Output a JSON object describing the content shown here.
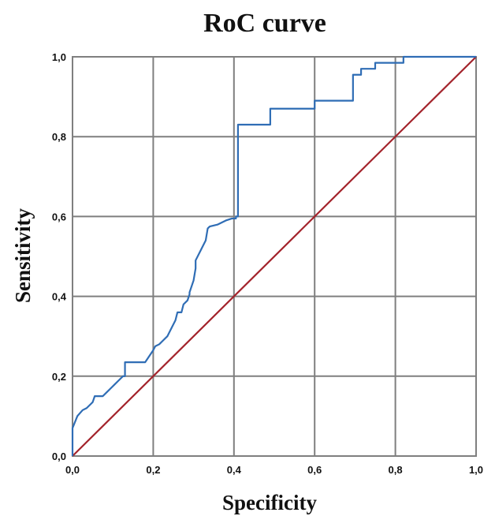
{
  "chart_data": {
    "type": "line",
    "title": "RoC curve",
    "xlabel": "Specificity",
    "ylabel": "Sensitivity",
    "xlim": [
      0,
      1
    ],
    "ylim": [
      0,
      1
    ],
    "x_ticks": [
      "0,0",
      "0,2",
      "0,4",
      "0,6",
      "0,8",
      "1,0"
    ],
    "y_ticks": [
      "0,0",
      "0,2",
      "0,4",
      "0,6",
      "0,8",
      "1,0"
    ],
    "grid": true,
    "series": [
      {
        "color": "#2f6db5",
        "x": [
          0.0,
          0.0,
          0.012,
          0.025,
          0.035,
          0.045,
          0.05,
          0.055,
          0.065,
          0.075,
          0.085,
          0.095,
          0.105,
          0.115,
          0.125,
          0.13,
          0.13,
          0.18,
          0.19,
          0.2,
          0.205,
          0.215,
          0.225,
          0.235,
          0.24,
          0.25,
          0.255,
          0.26,
          0.27,
          0.275,
          0.285,
          0.29,
          0.29,
          0.3,
          0.305,
          0.305,
          0.32,
          0.33,
          0.335,
          0.34,
          0.36,
          0.38,
          0.395,
          0.405,
          0.405,
          0.41,
          0.41,
          0.49,
          0.49,
          0.6,
          0.6,
          0.695,
          0.695,
          0.715,
          0.715,
          0.75,
          0.75,
          0.82,
          0.82,
          1.0
        ],
        "y": [
          0.0,
          0.07,
          0.1,
          0.115,
          0.12,
          0.13,
          0.135,
          0.15,
          0.15,
          0.15,
          0.16,
          0.17,
          0.18,
          0.19,
          0.2,
          0.2,
          0.235,
          0.235,
          0.25,
          0.265,
          0.275,
          0.28,
          0.29,
          0.3,
          0.31,
          0.33,
          0.34,
          0.36,
          0.36,
          0.38,
          0.39,
          0.405,
          0.41,
          0.44,
          0.47,
          0.49,
          0.52,
          0.54,
          0.57,
          0.575,
          0.58,
          0.59,
          0.595,
          0.595,
          0.6,
          0.6,
          0.83,
          0.83,
          0.87,
          0.87,
          0.89,
          0.89,
          0.955,
          0.955,
          0.97,
          0.97,
          0.985,
          0.985,
          1.0,
          1.0
        ]
      },
      {
        "color": "#a3232b",
        "x": [
          0,
          1
        ],
        "y": [
          0,
          1
        ]
      }
    ]
  }
}
